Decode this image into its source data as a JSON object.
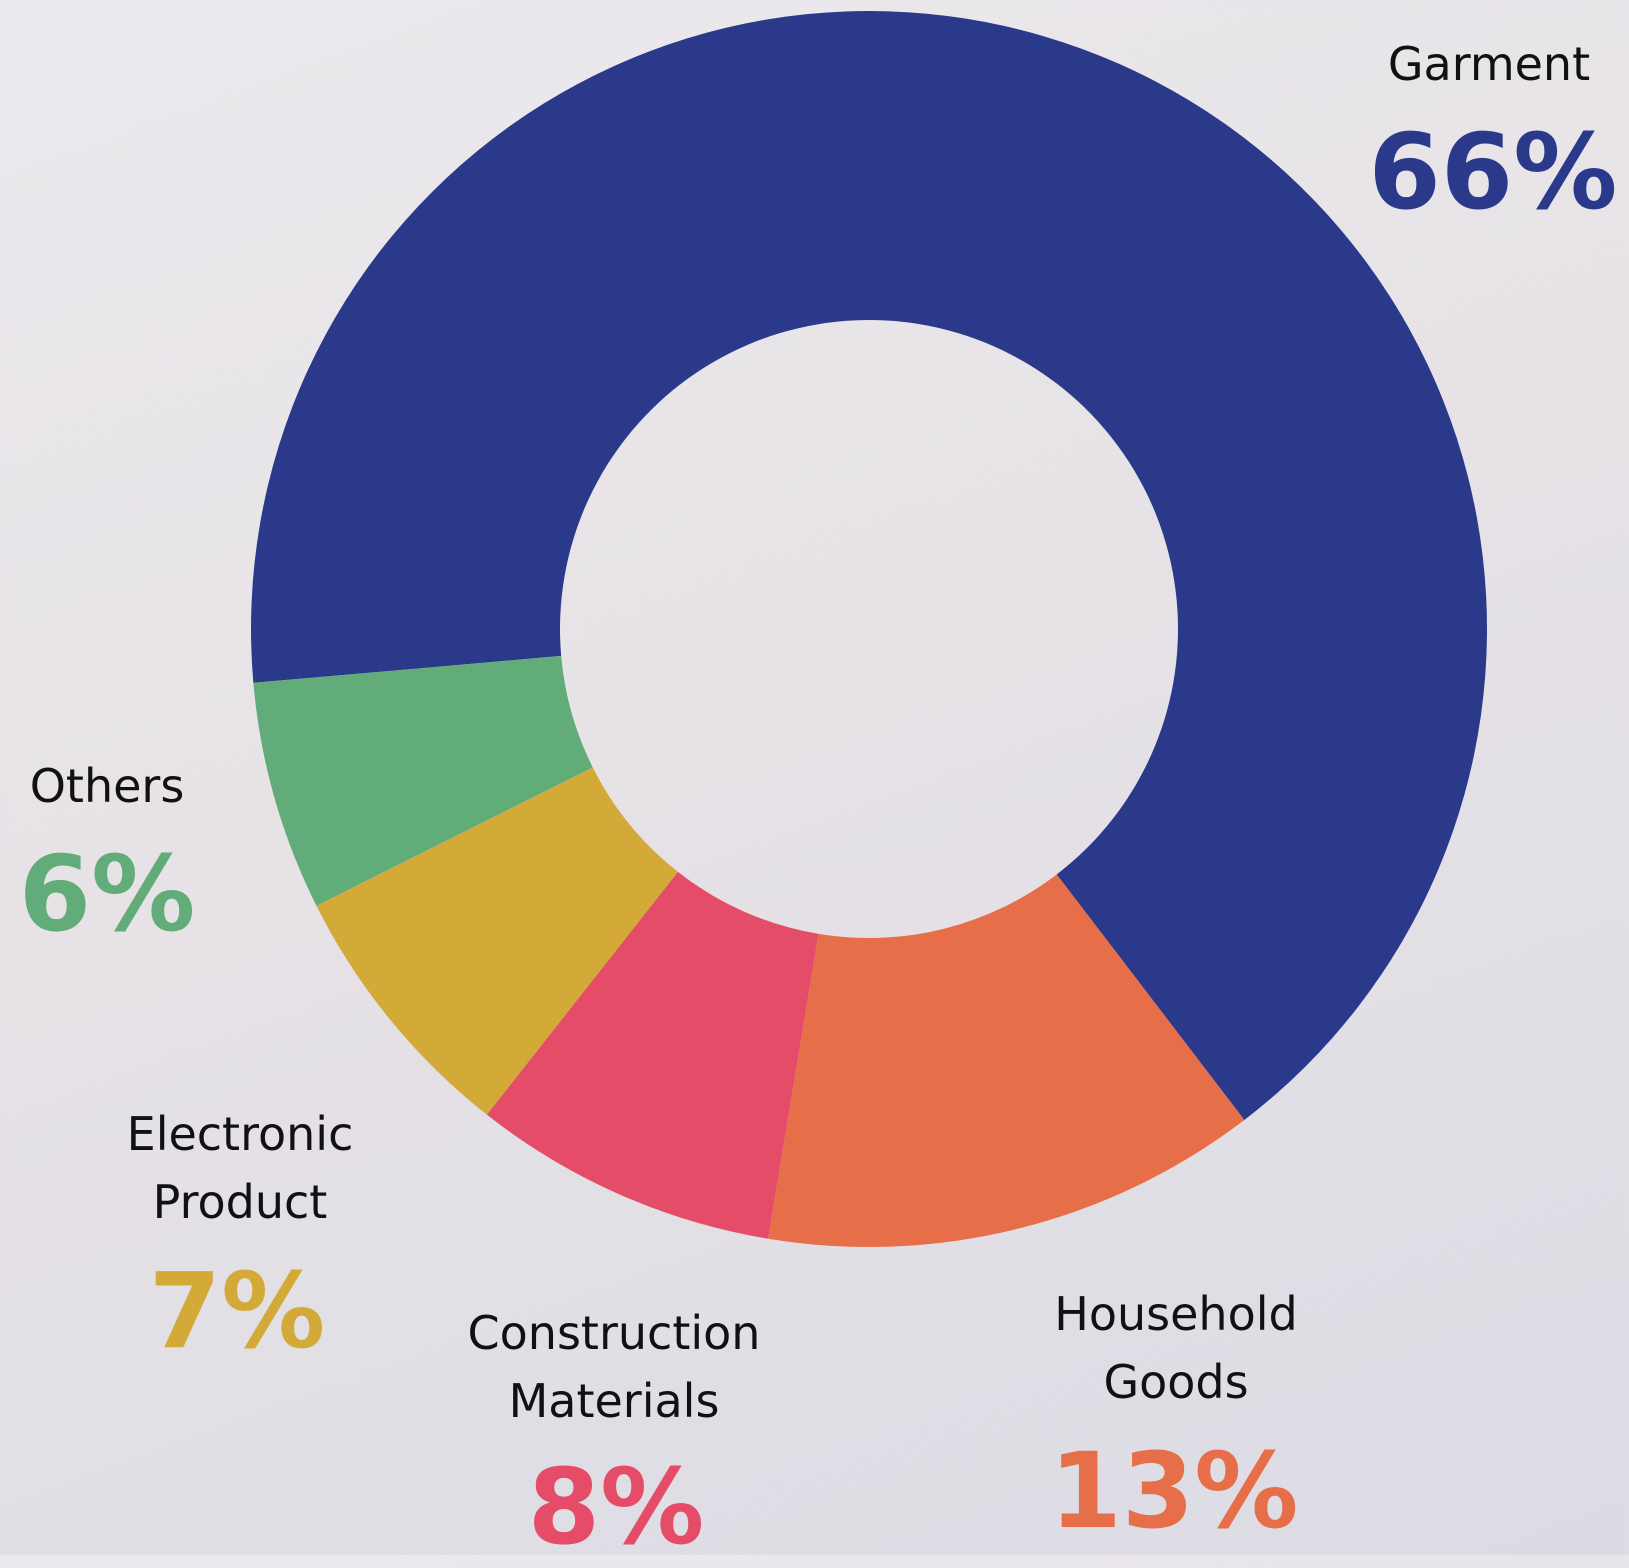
{
  "chart_data": {
    "type": "donut",
    "categories": [
      "Garment",
      "Household Goods",
      "Construction Materials",
      "Electronic Product",
      "Others"
    ],
    "values": [
      66,
      13,
      8,
      7,
      6
    ],
    "value_labels": [
      "66%",
      "13%",
      "8%",
      "7%",
      "6%"
    ],
    "colors": [
      "#2a398a",
      "#e66f49",
      "#e54c68",
      "#d3aa38",
      "#61ac78"
    ]
  }
}
